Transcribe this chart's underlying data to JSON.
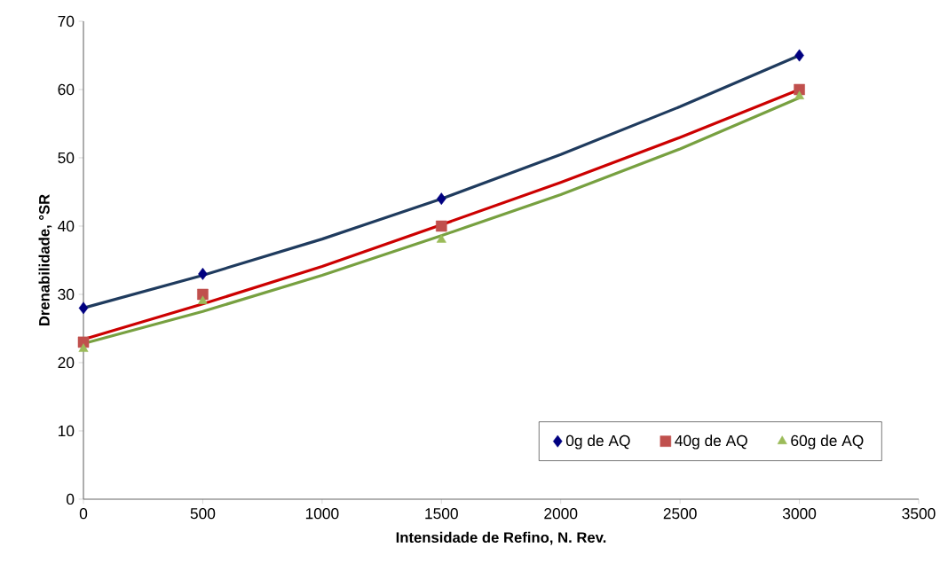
{
  "chart_data": {
    "type": "scatter",
    "xlabel": "Intensidade de Refino, N. Rev.",
    "ylabel": "Drenabilidade, °SR",
    "x": [
      0,
      500,
      1500,
      3000
    ],
    "series": [
      {
        "name": "0g de AQ",
        "marker": "diamond",
        "color": "#000080",
        "values": [
          28,
          33,
          44,
          65
        ]
      },
      {
        "name": "40g de AQ",
        "marker": "square",
        "color": "#c0504d",
        "values": [
          23,
          30,
          40,
          60
        ]
      },
      {
        "name": "60g de AQ",
        "marker": "triangle",
        "color": "#9bbb59",
        "values": [
          22,
          29,
          38,
          59
        ]
      },
      {
        "type": "line",
        "marker": "none",
        "color": "#1f3b5e",
        "x": [
          0,
          500,
          1000,
          1500,
          2000,
          2500,
          3000
        ],
        "values": [
          28,
          32.8,
          38.1,
          44,
          50.5,
          57.5,
          65
        ]
      },
      {
        "type": "line",
        "marker": "none",
        "color": "#cc0000",
        "x": [
          0,
          500,
          1000,
          1500,
          2000,
          2500,
          3000
        ],
        "values": [
          23.4,
          28.6,
          34.1,
          40.2,
          46.4,
          53,
          60
        ]
      },
      {
        "type": "line",
        "marker": "none",
        "color": "#77a040",
        "x": [
          0,
          500,
          1000,
          1500,
          2000,
          2500,
          3000
        ],
        "values": [
          22.8,
          27.5,
          32.8,
          38.6,
          44.6,
          51.3,
          58.8
        ]
      }
    ],
    "xlim": [
      0,
      3500
    ],
    "xticks": [
      0,
      500,
      1000,
      1500,
      2000,
      2500,
      3000,
      3500
    ],
    "ylim": [
      0,
      70
    ],
    "yticks": [
      0,
      10,
      20,
      30,
      40,
      50,
      60,
      70
    ],
    "grid": false,
    "legend": "bottom right"
  }
}
